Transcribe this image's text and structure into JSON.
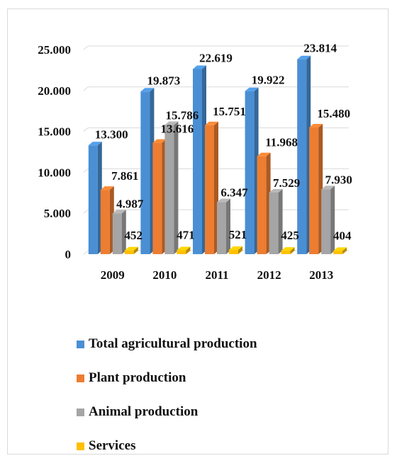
{
  "chart_data": {
    "type": "bar",
    "style": "3d-clustered",
    "categories": [
      "2009",
      "2010",
      "2011",
      "2012",
      "2013"
    ],
    "series": [
      {
        "name": "Total agricultural production",
        "values": [
          13300,
          19873,
          22619,
          19922,
          23814
        ],
        "labels": [
          "13.300",
          "19.873",
          "22.619",
          "19.922",
          "23.814"
        ],
        "color": "#4a8fd4"
      },
      {
        "name": "Plant production",
        "values": [
          7861,
          13616,
          15751,
          11968,
          15480
        ],
        "labels": [
          "7.861",
          "13.616",
          "15.751",
          "11.968",
          "15.480"
        ],
        "color": "#ed7d31"
      },
      {
        "name": "Animal production",
        "values": [
          4987,
          15786,
          6347,
          7529,
          7930
        ],
        "labels": [
          "4.987",
          "15.786",
          "6.347",
          "7.529",
          "7.930"
        ],
        "color": "#a5a5a5"
      },
      {
        "name": "Services",
        "values": [
          452,
          471,
          521,
          425,
          404
        ],
        "labels": [
          "452",
          "471",
          "521",
          "425",
          "404"
        ],
        "color": "#ffc000"
      }
    ],
    "yticks": [
      0,
      5000,
      10000,
      15000,
      20000,
      25000
    ],
    "yticklabels": [
      "0",
      "5.000",
      "10.000",
      "15.000",
      "20.000",
      "25.000"
    ],
    "ylim": [
      0,
      25000
    ],
    "grid": true,
    "legend_position": "bottom"
  }
}
